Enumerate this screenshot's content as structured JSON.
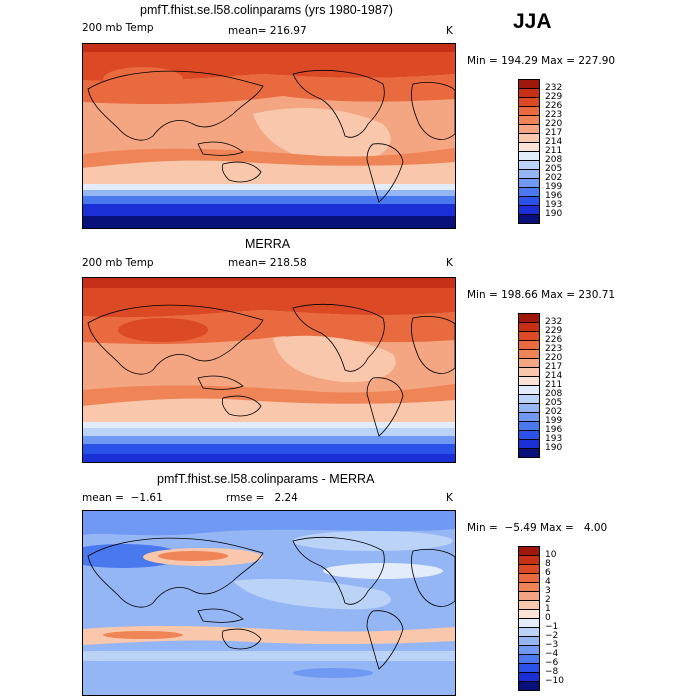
{
  "season_label": "JJA",
  "colors": {
    "temp_scale": [
      "#08117a",
      "#1a2fd6",
      "#2a52e8",
      "#4a78ef",
      "#6f99f2",
      "#95b6f5",
      "#bcd3f8",
      "#e2ecfb",
      "#fbe4d6",
      "#f8c7ac",
      "#f4a582",
      "#ef8556",
      "#e86a3e",
      "#db4a24",
      "#c63017",
      "#a0170c"
    ],
    "diff_scale": [
      "#08117a",
      "#1a2fd6",
      "#2a52e8",
      "#4a78ef",
      "#6f99f2",
      "#95b6f5",
      "#bcd3f8",
      "#e2ecfb",
      "#fbe4d6",
      "#f8c7ac",
      "#f4a582",
      "#ef8556",
      "#e86a3e",
      "#db4a24",
      "#c63017",
      "#a0170c"
    ]
  },
  "chart_data": [
    {
      "type": "heatmap",
      "title": "pmfT.fhist.se.l58.colinparams (yrs 1980-1987)",
      "variable_label": "200 mb Temp",
      "stat_label": "mean= 216.97",
      "units": "K",
      "minmax_label": "Min = 194.29 Max = 227.90",
      "colorbar_levels": [
        "232",
        "229",
        "226",
        "223",
        "220",
        "217",
        "214",
        "211",
        "208",
        "205",
        "202",
        "199",
        "196",
        "193",
        "190"
      ]
    },
    {
      "type": "heatmap",
      "title": "MERRA",
      "variable_label": "200 mb Temp",
      "stat_label": "mean= 218.58",
      "units": "K",
      "minmax_label": "Min = 198.66 Max = 230.71",
      "colorbar_levels": [
        "232",
        "229",
        "226",
        "223",
        "220",
        "217",
        "214",
        "211",
        "208",
        "205",
        "202",
        "199",
        "196",
        "193",
        "190"
      ]
    },
    {
      "type": "heatmap",
      "title": "pmfT.fhist.se.l58.colinparams - MERRA",
      "stat_label": "mean =  −1.61",
      "stat2_label": "rmse =   2.24",
      "units": "K",
      "minmax_label": "Min =  −5.49 Max =   4.00",
      "colorbar_levels": [
        "10",
        "8",
        "6",
        "4",
        "3",
        "2",
        "1",
        "0",
        "−1",
        "−2",
        "−3",
        "−4",
        "−6",
        "−8",
        "−10"
      ]
    }
  ]
}
